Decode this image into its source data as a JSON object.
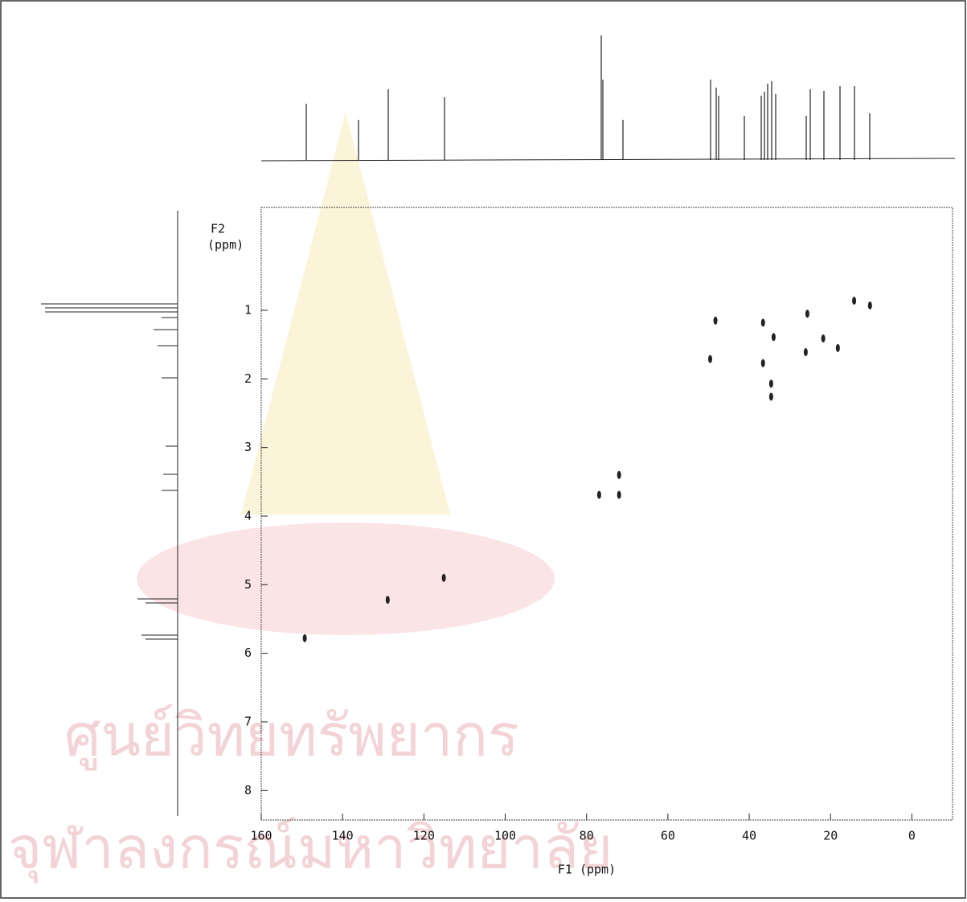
{
  "chart_data": {
    "type": "scatter",
    "x_label": "F1 (ppm)",
    "y_label": [
      "F2",
      "(ppm)"
    ],
    "watermark": [
      "ศูนย์วิทยทรัพยากร",
      "จุฬาลงกรณ์มหาวิทยาลัย"
    ],
    "x": [
      149.3,
      128.9,
      115.1,
      76.9,
      72.0,
      72.0,
      49.6,
      48.3,
      36.6,
      34.0,
      36.6,
      34.6,
      34.6,
      25.7,
      26.1,
      21.8,
      18.2,
      14.2,
      10.3
    ],
    "y": [
      5.78,
      5.22,
      4.9,
      3.69,
      3.69,
      3.4,
      1.71,
      1.15,
      1.18,
      1.39,
      1.77,
      2.07,
      2.26,
      1.05,
      1.61,
      1.41,
      1.55,
      0.86,
      0.93
    ],
    "color": "#222222",
    "xlim": [
      160,
      -10
    ],
    "ylim": [
      -0.5,
      8.43
    ],
    "xticks": [
      160,
      140,
      120,
      100,
      80,
      60,
      40,
      20,
      0
    ],
    "yticks": [
      1,
      2,
      3,
      4,
      5,
      6,
      7,
      8
    ]
  }
}
